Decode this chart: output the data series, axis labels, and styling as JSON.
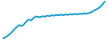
{
  "values": [
    10,
    18,
    28,
    40,
    55,
    72,
    85,
    95,
    88,
    100,
    118,
    130,
    125,
    138,
    150,
    148,
    145,
    152,
    148,
    155,
    152,
    158,
    155,
    160,
    157,
    162,
    158,
    163,
    160,
    165,
    162,
    167,
    163,
    168,
    165,
    170,
    167,
    172,
    175,
    185,
    192,
    200,
    210,
    225,
    245
  ],
  "line_color": "#1a9ed0",
  "background_color": "#ffffff",
  "linewidth": 1.3
}
